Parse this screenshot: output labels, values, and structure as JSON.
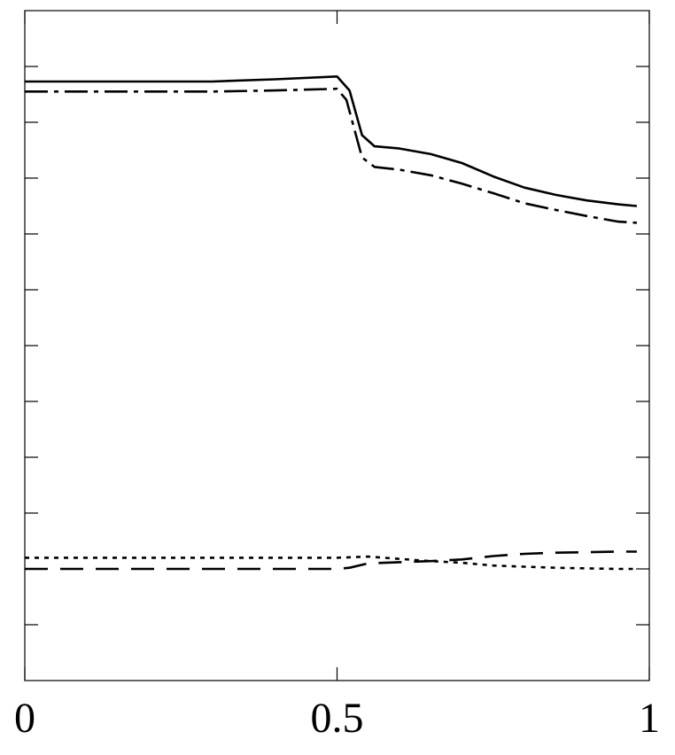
{
  "chart_data": {
    "type": "line",
    "title": "",
    "xlabel": "",
    "ylabel": "",
    "xlim": [
      0,
      1
    ],
    "ylim": [
      -2,
      10
    ],
    "grid": false,
    "legend": "none",
    "x_ticks": [
      0,
      0.5,
      1
    ],
    "x_tick_labels": [
      "0",
      "0.5",
      "1"
    ],
    "y_ticks": [
      -1,
      0,
      1,
      2,
      3,
      4,
      5,
      6,
      7,
      8,
      9
    ],
    "y_tick_labels": [],
    "series": [
      {
        "style": "solid",
        "x": [
          0,
          0.1,
          0.2,
          0.3,
          0.4,
          0.5,
          0.52,
          0.54,
          0.56,
          0.6,
          0.65,
          0.7,
          0.75,
          0.8,
          0.85,
          0.9,
          0.95,
          0.98
        ],
        "y": [
          8.73,
          8.73,
          8.73,
          8.73,
          8.77,
          8.82,
          8.57,
          7.77,
          7.57,
          7.53,
          7.43,
          7.27,
          7.03,
          6.83,
          6.7,
          6.6,
          6.53,
          6.5
        ]
      },
      {
        "style": "dashdot",
        "x": [
          0,
          0.1,
          0.2,
          0.3,
          0.4,
          0.5,
          0.515,
          0.54,
          0.56,
          0.6,
          0.65,
          0.7,
          0.75,
          0.8,
          0.85,
          0.9,
          0.95,
          0.98
        ],
        "y": [
          8.55,
          8.55,
          8.55,
          8.55,
          8.57,
          8.6,
          8.4,
          7.37,
          7.2,
          7.15,
          7.05,
          6.9,
          6.73,
          6.55,
          6.43,
          6.32,
          6.22,
          6.2
        ]
      },
      {
        "style": "dotted",
        "x": [
          0,
          0.1,
          0.2,
          0.3,
          0.4,
          0.5,
          0.55,
          0.6,
          0.65,
          0.7,
          0.75,
          0.8,
          0.85,
          0.9,
          0.95,
          0.98
        ],
        "y": [
          0.2,
          0.2,
          0.2,
          0.2,
          0.2,
          0.2,
          0.22,
          0.18,
          0.14,
          0.11,
          0.06,
          0.04,
          0.02,
          0.01,
          0.0,
          0.0
        ]
      },
      {
        "style": "dashed",
        "x": [
          0,
          0.1,
          0.2,
          0.3,
          0.4,
          0.5,
          0.52,
          0.55,
          0.6,
          0.65,
          0.7,
          0.75,
          0.8,
          0.85,
          0.9,
          0.95,
          0.98
        ],
        "y": [
          0.0,
          0.0,
          0.0,
          0.0,
          0.0,
          0.0,
          0.02,
          0.1,
          0.12,
          0.14,
          0.17,
          0.23,
          0.27,
          0.29,
          0.3,
          0.31,
          0.31
        ]
      }
    ]
  }
}
